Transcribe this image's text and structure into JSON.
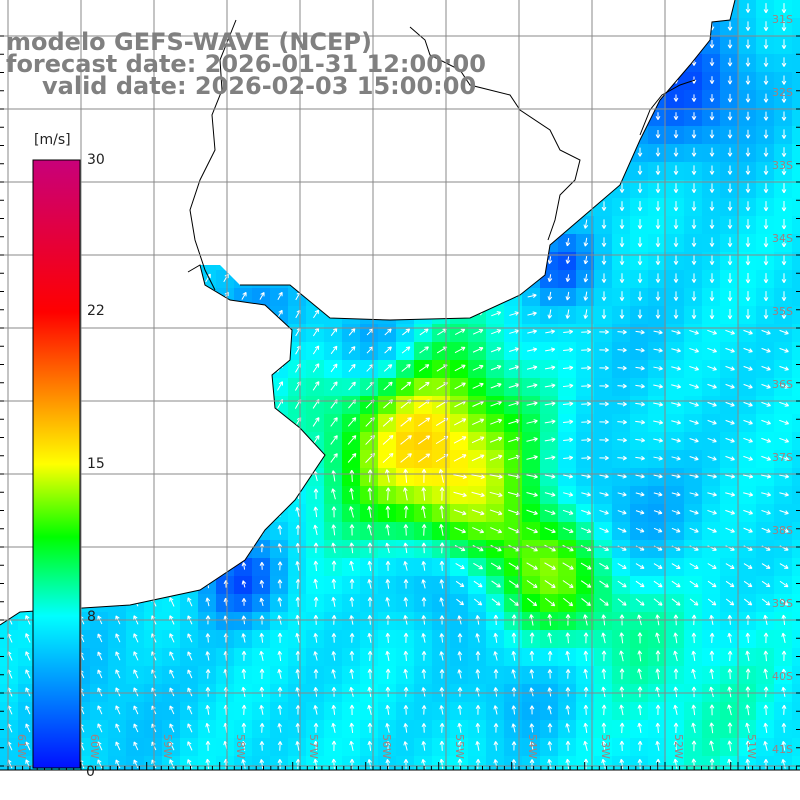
{
  "title": {
    "line1": "modelo GEFS-WAVE (NCEP)",
    "line2": "forecast date: 2026-01-31 12:00:00",
    "line3": "valid date: 2026-02-03 15:00:00"
  },
  "colorbar": {
    "unit": "[m/s]",
    "ticks": [
      "30",
      "22",
      "15",
      "8",
      "0"
    ],
    "colors": {
      "low": "#0010ff",
      "mid": "#00ffff",
      "green": "#00ff00",
      "yellow": "#ffff00",
      "red": "#ff0000",
      "high": "#c8007a"
    }
  },
  "axes": {
    "latitudes": [
      "31S",
      "32S",
      "33S",
      "34S",
      "35S",
      "36S",
      "37S",
      "38S",
      "39S",
      "40S",
      "41S"
    ],
    "longitudes": [
      "61W",
      "60W",
      "59W",
      "58W",
      "57W",
      "56W",
      "55W",
      "54W",
      "53W",
      "52W",
      "51W"
    ]
  },
  "field": {
    "variable": "wind speed",
    "units": "m/s",
    "range": [
      0,
      30
    ]
  }
}
